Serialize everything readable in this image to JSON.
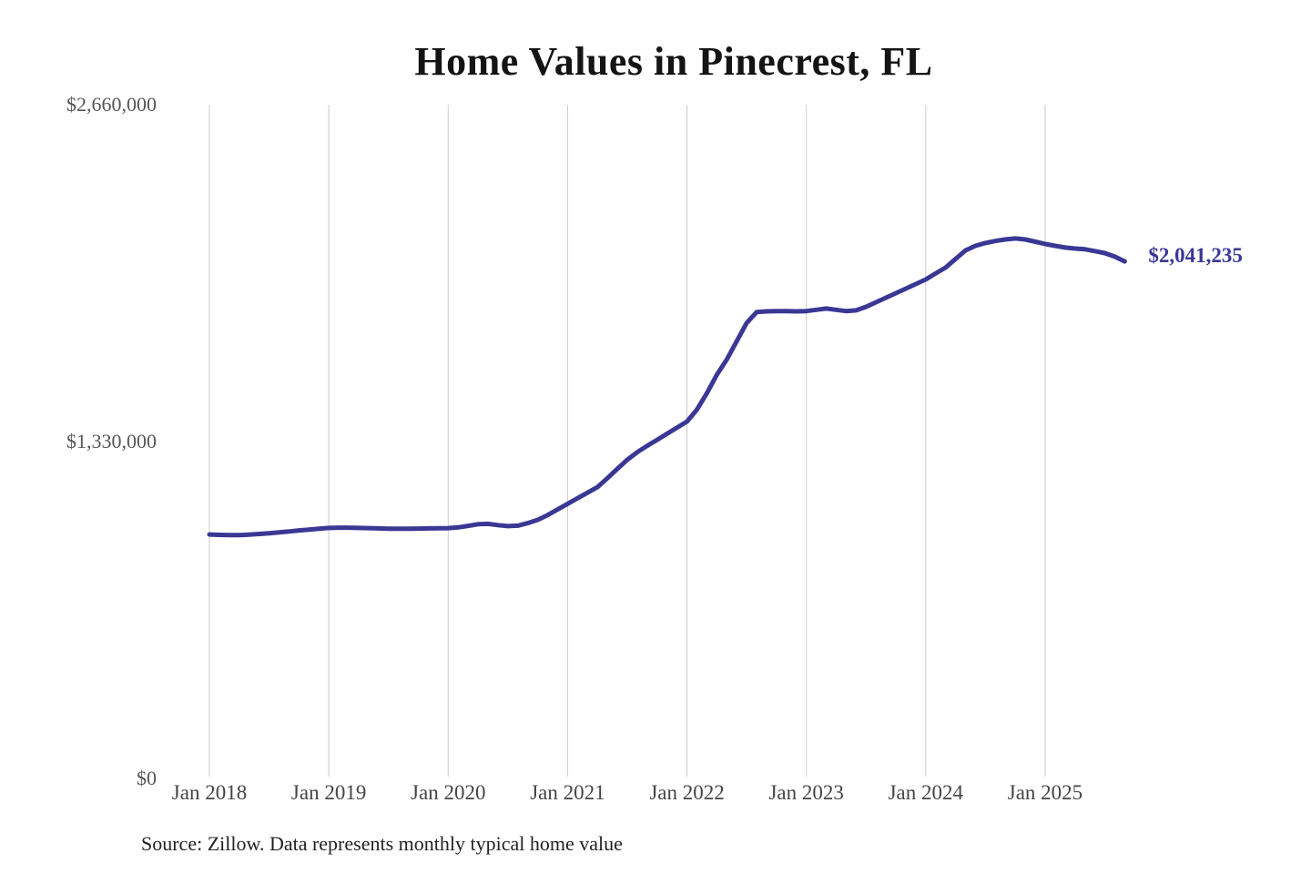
{
  "title": "Home Values in Pinecrest, FL",
  "source_note": "Source: Zillow. Data represents monthly typical home value",
  "colors": {
    "line": "#3a3795",
    "grid": "#cccccc",
    "title_text": "#141414",
    "y_label": "#555555",
    "x_label": "#454545",
    "source_text": "#222222",
    "background": "#ffffff"
  },
  "chart_data": {
    "type": "line",
    "title": "Home Values in Pinecrest, FL",
    "xlabel": "",
    "ylabel": "",
    "x_start": "Jan 2018",
    "x_end": "Sep 2025",
    "x_tick_labels": [
      "Jan 2018",
      "Jan 2019",
      "Jan 2020",
      "Jan 2021",
      "Jan 2022",
      "Jan 2023",
      "Jan 2024",
      "Jan 2025"
    ],
    "y_tick_labels": [
      "$0",
      "$1,330,000",
      "$2,660,000"
    ],
    "y_tick_values": [
      0,
      1330000,
      2660000
    ],
    "ylim": [
      0,
      2660000
    ],
    "grid": "vertical-only",
    "legend": "none",
    "end_label": "$2,041,235",
    "end_value": 2041235,
    "series": [
      {
        "name": "Typical home value",
        "unit": "USD",
        "frequency": "monthly",
        "monthly_values": [
          963000,
          961500,
          960500,
          961000,
          962500,
          965000,
          968000,
          971500,
          975000,
          979000,
          982500,
          986000,
          989000,
          990000,
          990000,
          989000,
          988000,
          987000,
          986000,
          986000,
          986000,
          986500,
          987000,
          987500,
          988000,
          991000,
          997000,
          1003500,
          1005000,
          1000000,
          996000,
          998000,
          1008000,
          1021000,
          1040000,
          1062000,
          1084000,
          1106000,
          1128000,
          1150000,
          1185000,
          1222000,
          1258000,
          1288000,
          1313000,
          1337000,
          1361000,
          1385000,
          1409000,
          1456000,
          1521000,
          1593000,
          1654000,
          1726000,
          1798000,
          1841000,
          1844000,
          1845000,
          1845000,
          1844000,
          1845000,
          1850000,
          1855000,
          1850000,
          1845000,
          1848000,
          1862000,
          1880000,
          1898000,
          1916000,
          1934000,
          1952000,
          1970000,
          1994000,
          2017000,
          2051000,
          2085000,
          2103000,
          2114000,
          2122000,
          2128000,
          2132000,
          2128000,
          2119000,
          2110000,
          2103000,
          2096000,
          2092000,
          2089000,
          2082000,
          2074000,
          2060000,
          2041235
        ]
      }
    ]
  }
}
